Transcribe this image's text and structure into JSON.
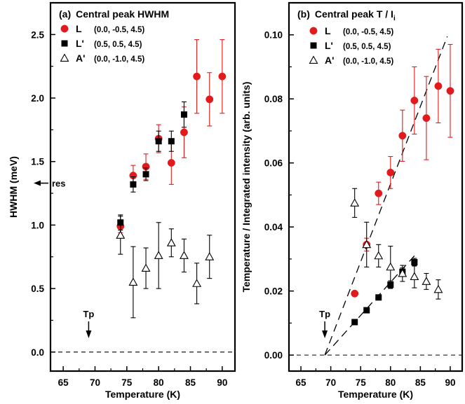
{
  "chart_data": [
    {
      "type": "scatter",
      "panel": "(a)",
      "title": "Central peak HWHM",
      "xlabel": "Temperature (K)",
      "ylabel": "HWHM (meV)",
      "xlim": [
        63,
        92
      ],
      "ylim": [
        -0.15,
        2.75
      ],
      "xticks": [
        65,
        70,
        75,
        80,
        85,
        90
      ],
      "xtick_labels": [
        "65",
        "70",
        "75",
        "80",
        "85",
        "90"
      ],
      "yticks": [
        0.0,
        0.5,
        1.0,
        1.5,
        2.0,
        2.5
      ],
      "ytick_labels": [
        "0.0",
        "0.5",
        "1.0",
        "1.5",
        "2.0",
        "2.5"
      ],
      "grid": false,
      "legend_position": "top-left",
      "series": [
        {
          "name": "L",
          "hkl": "(0.0, -0.5, 4.5)",
          "marker": "circle",
          "color": "#e31a1c",
          "points": [
            {
              "x": 74,
              "y": 0.99,
              "err": 0.05
            },
            {
              "x": 76,
              "y": 1.39,
              "err": 0.08
            },
            {
              "x": 78,
              "y": 1.46,
              "err": 0.1
            },
            {
              "x": 80,
              "y": 1.68,
              "err": 0.11
            },
            {
              "x": 82,
              "y": 1.49,
              "err": 0.17
            },
            {
              "x": 84,
              "y": 1.73,
              "err": 0.2
            },
            {
              "x": 86,
              "y": 2.17,
              "err": 0.29
            },
            {
              "x": 88,
              "y": 1.99,
              "err": 0.21
            },
            {
              "x": 90,
              "y": 2.17,
              "err": 0.29
            }
          ]
        },
        {
          "name": "L'",
          "hkl": "(0.5,  0.5, 4.5)",
          "marker": "square",
          "color": "#000000",
          "points": [
            {
              "x": 74,
              "y": 1.02,
              "err": 0.06
            },
            {
              "x": 76,
              "y": 1.32,
              "err": 0.06
            },
            {
              "x": 78,
              "y": 1.4,
              "err": 0.05
            },
            {
              "x": 80,
              "y": 1.66,
              "err": 0.08
            },
            {
              "x": 82,
              "y": 1.66,
              "err": 0.08
            },
            {
              "x": 84,
              "y": 1.87,
              "err": 0.1
            }
          ]
        },
        {
          "name": "A'",
          "hkl": "(0.0, -1.0, 4.5)",
          "marker": "triangle-open",
          "color": "#000000",
          "points": [
            {
              "x": 74,
              "y": 0.92,
              "err": 0.15
            },
            {
              "x": 76,
              "y": 0.55,
              "err": 0.28
            },
            {
              "x": 78,
              "y": 0.66,
              "err": 0.16
            },
            {
              "x": 80,
              "y": 0.76,
              "err": 0.26
            },
            {
              "x": 82,
              "y": 0.86,
              "err": 0.11
            },
            {
              "x": 84,
              "y": 0.76,
              "err": 0.13
            },
            {
              "x": 86,
              "y": 0.54,
              "err": 0.16
            },
            {
              "x": 88,
              "y": 0.75,
              "err": 0.17
            }
          ]
        }
      ],
      "annotations": [
        {
          "text": "res",
          "arrow": "left",
          "y": 1.33
        },
        {
          "text": "Tp",
          "arrow": "down",
          "x": 69
        }
      ],
      "reference_lines": [
        {
          "type": "horizontal",
          "y": 0.0,
          "style": "dashed"
        }
      ]
    },
    {
      "type": "scatter",
      "panel": "(b)",
      "title": "Central peak T / I",
      "title_subscript": "i",
      "xlabel": "Temperature (K)",
      "ylabel": "Temperature / Integrated intensity (arb. units)",
      "xlim": [
        63,
        92
      ],
      "ylim": [
        -0.005,
        0.11
      ],
      "xticks": [
        65,
        70,
        75,
        80,
        85,
        90
      ],
      "xtick_labels": [
        "65",
        "70",
        "75",
        "80",
        "85",
        "90"
      ],
      "yticks": [
        0.0,
        0.02,
        0.04,
        0.06,
        0.08,
        0.1
      ],
      "ytick_labels": [
        "0.00",
        "0.02",
        "0.04",
        "0.06",
        "0.08",
        "0.10"
      ],
      "grid": false,
      "legend_position": "top-left",
      "series": [
        {
          "name": "L",
          "hkl": "(0.0, -0.5, 4.5)",
          "marker": "circle",
          "color": "#e31a1c",
          "points": [
            {
              "x": 74,
              "y": 0.0192,
              "err": 0.0005
            },
            {
              "x": 76,
              "y": 0.0345,
              "err": 0.002
            },
            {
              "x": 78,
              "y": 0.0505,
              "err": 0.0035
            },
            {
              "x": 80,
              "y": 0.057,
              "err": 0.005
            },
            {
              "x": 82,
              "y": 0.0685,
              "err": 0.008
            },
            {
              "x": 84,
              "y": 0.0795,
              "err": 0.0105
            },
            {
              "x": 86,
              "y": 0.074,
              "err": 0.013
            },
            {
              "x": 88,
              "y": 0.084,
              "err": 0.0115
            },
            {
              "x": 90,
              "y": 0.0825,
              "err": 0.0145
            }
          ]
        },
        {
          "name": "L'",
          "hkl": "(0.5,  0.5, 4.5)",
          "marker": "square",
          "color": "#000000",
          "points": [
            {
              "x": 74,
              "y": 0.0103,
              "err": 0.0004
            },
            {
              "x": 76,
              "y": 0.014,
              "err": 0.0005
            },
            {
              "x": 78,
              "y": 0.018,
              "err": 0.0005
            },
            {
              "x": 80,
              "y": 0.022,
              "err": 0.0012
            },
            {
              "x": 82,
              "y": 0.026,
              "err": 0.0012
            },
            {
              "x": 84,
              "y": 0.029,
              "err": 0.0012
            }
          ]
        },
        {
          "name": "A'",
          "hkl": "(0.0, -1.0, 4.5)",
          "marker": "triangle-open",
          "color": "#000000",
          "points": [
            {
              "x": 74,
              "y": 0.0475,
              "err": 0.0045
            },
            {
              "x": 76,
              "y": 0.0345,
              "err": 0.007
            },
            {
              "x": 78,
              "y": 0.031,
              "err": 0.0035
            },
            {
              "x": 80,
              "y": 0.0275,
              "err": 0.0065
            },
            {
              "x": 82,
              "y": 0.0255,
              "err": 0.0025
            },
            {
              "x": 84,
              "y": 0.0245,
              "err": 0.0035
            },
            {
              "x": 86,
              "y": 0.023,
              "err": 0.0025
            },
            {
              "x": 88,
              "y": 0.0205,
              "err": 0.003
            }
          ]
        }
      ],
      "annotations": [
        {
          "text": "Tp",
          "arrow": "down",
          "x": 69
        }
      ],
      "reference_lines": [
        {
          "type": "horizontal",
          "y": 0.0,
          "style": "dashed"
        },
        {
          "type": "fit",
          "x": [
            69,
            89.5
          ],
          "y": [
            0.0,
            0.0995
          ],
          "style": "dashed"
        },
        {
          "type": "fit",
          "x": [
            69,
            84
          ],
          "y": [
            0.0,
            0.031
          ],
          "style": "dashed"
        }
      ]
    }
  ]
}
